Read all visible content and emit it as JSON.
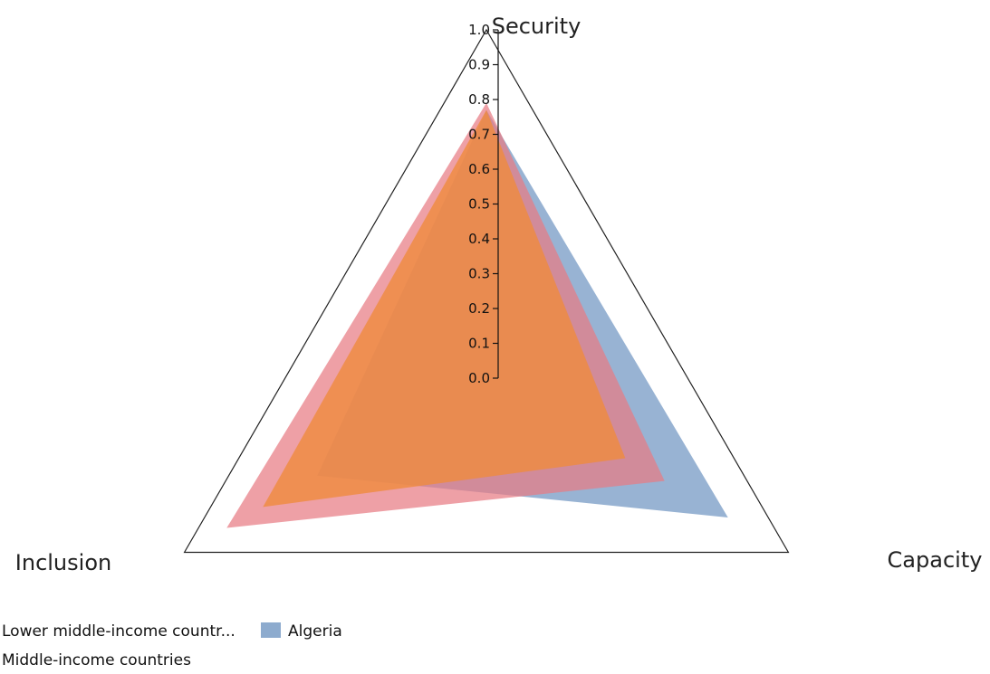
{
  "chart_data": {
    "type": "radar",
    "axes": [
      "Security",
      "Capacity",
      "Inclusion"
    ],
    "rlim": [
      0,
      1
    ],
    "ticks": [
      "0.0",
      "0.1",
      "0.2",
      "0.3",
      "0.4",
      "0.5",
      "0.6",
      "0.7",
      "0.8",
      "0.9",
      "1.0"
    ],
    "series": [
      {
        "name": "Algeria",
        "values": [
          0.77,
          0.8,
          0.56
        ],
        "color": "#7096c2"
      },
      {
        "name": "Lower middle-income countr...",
        "values": [
          0.79,
          0.59,
          0.86
        ],
        "color": "#e87c84"
      },
      {
        "name": "Middle-income countries",
        "values": [
          0.77,
          0.46,
          0.74
        ],
        "color": "#ef8b3d"
      }
    ],
    "legend": {
      "items": [
        {
          "label": "Lower middle-income countr...",
          "color": "#e87c84"
        },
        {
          "label": "Algeria",
          "color": "#7096c2"
        },
        {
          "label": "Middle-income countries",
          "color": "#ef8b3d"
        }
      ]
    }
  }
}
